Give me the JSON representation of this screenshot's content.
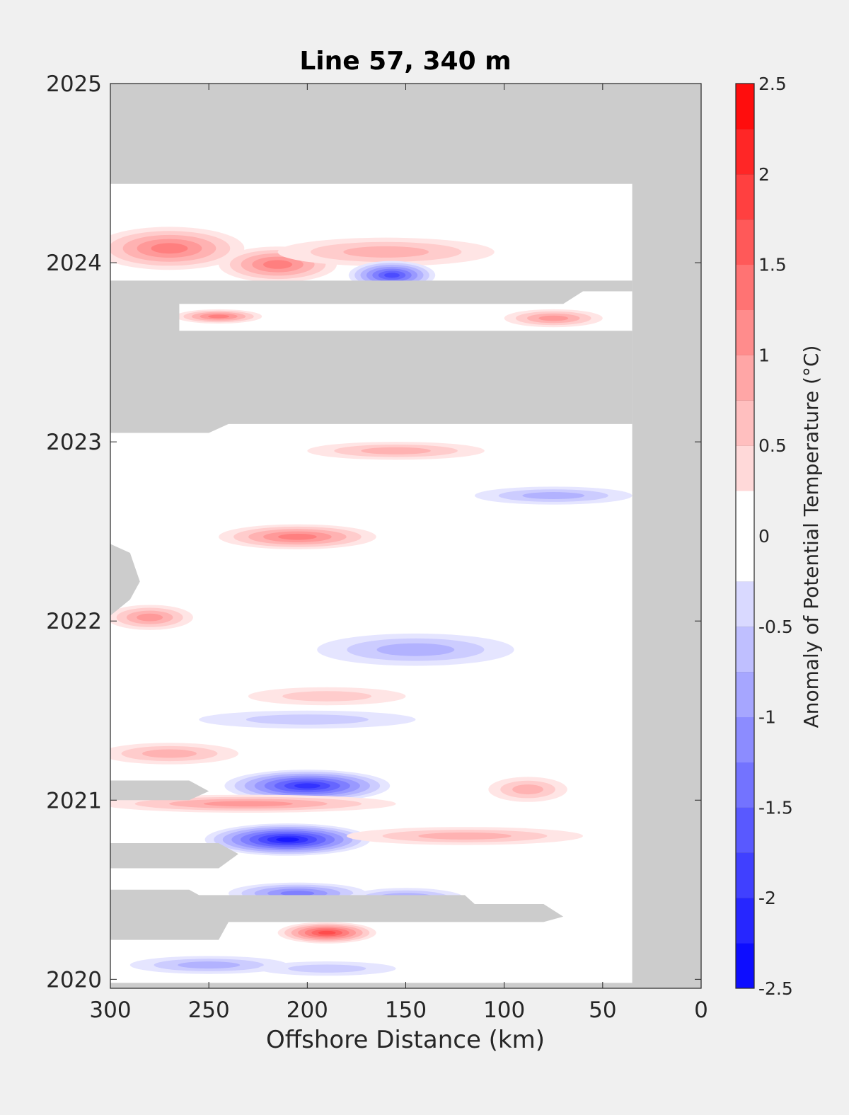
{
  "chart_data": {
    "type": "heatmap",
    "title": "Line 57, 340 m",
    "xlabel": "Offshore Distance (km)",
    "ylabel": "",
    "xlim": [
      300,
      0
    ],
    "ylim": [
      2019.95,
      2025
    ],
    "x_ticks": [
      300,
      250,
      200,
      150,
      100,
      50,
      0
    ],
    "y_ticks": [
      2020,
      2021,
      2022,
      2023,
      2024,
      2025
    ],
    "colorbar": {
      "label": "Anomaly of Potential Temperature (°C)",
      "range": [
        -2.5,
        2.5
      ],
      "step": 0.25,
      "ticks": [
        2.5,
        2,
        1.5,
        1,
        0.5,
        0,
        -0.5,
        -1,
        -1.5,
        -2,
        -2.5
      ]
    },
    "no_data_color": "#cccccc",
    "anomaly_features": [
      {
        "x": 270,
        "y": 2024.08,
        "rx": 38,
        "ry": 0.12,
        "value": 1.25
      },
      {
        "x": 215,
        "y": 2023.99,
        "rx": 30,
        "ry": 0.1,
        "value": 1.25
      },
      {
        "x": 160,
        "y": 2024.06,
        "rx": 55,
        "ry": 0.08,
        "value": 0.75
      },
      {
        "x": 157,
        "y": 2023.93,
        "rx": 22,
        "ry": 0.08,
        "value": -1.75
      },
      {
        "x": 245,
        "y": 2023.7,
        "rx": 22,
        "ry": 0.04,
        "value": 1.25
      },
      {
        "x": 75,
        "y": 2023.69,
        "rx": 25,
        "ry": 0.05,
        "value": 1.0
      },
      {
        "x": 155,
        "y": 2022.95,
        "rx": 45,
        "ry": 0.05,
        "value": 0.75
      },
      {
        "x": 205,
        "y": 2022.47,
        "rx": 40,
        "ry": 0.07,
        "value": 1.25
      },
      {
        "x": 75,
        "y": 2022.7,
        "rx": 40,
        "ry": 0.05,
        "value": -0.75
      },
      {
        "x": 280,
        "y": 2022.02,
        "rx": 22,
        "ry": 0.07,
        "value": 1.0
      },
      {
        "x": 145,
        "y": 2021.84,
        "rx": 50,
        "ry": 0.09,
        "value": -0.75
      },
      {
        "x": 200,
        "y": 2021.45,
        "rx": 55,
        "ry": 0.05,
        "value": -0.5
      },
      {
        "x": 270,
        "y": 2021.26,
        "rx": 35,
        "ry": 0.06,
        "value": 0.75
      },
      {
        "x": 190,
        "y": 2021.58,
        "rx": 40,
        "ry": 0.05,
        "value": 0.5
      },
      {
        "x": 200,
        "y": 2021.08,
        "rx": 42,
        "ry": 0.09,
        "value": -2.0
      },
      {
        "x": 210,
        "y": 2020.78,
        "rx": 42,
        "ry": 0.09,
        "value": -2.25
      },
      {
        "x": 230,
        "y": 2020.98,
        "rx": 75,
        "ry": 0.05,
        "value": 1.0
      },
      {
        "x": 120,
        "y": 2020.8,
        "rx": 60,
        "ry": 0.05,
        "value": 0.75
      },
      {
        "x": 88,
        "y": 2021.06,
        "rx": 20,
        "ry": 0.07,
        "value": 0.75
      },
      {
        "x": 205,
        "y": 2020.48,
        "rx": 35,
        "ry": 0.06,
        "value": -1.25
      },
      {
        "x": 150,
        "y": 2020.45,
        "rx": 30,
        "ry": 0.06,
        "value": -1.0
      },
      {
        "x": 190,
        "y": 2020.26,
        "rx": 25,
        "ry": 0.06,
        "value": 1.75
      },
      {
        "x": 250,
        "y": 2020.08,
        "rx": 40,
        "ry": 0.05,
        "value": -0.75
      },
      {
        "x": 190,
        "y": 2020.06,
        "rx": 35,
        "ry": 0.04,
        "value": -0.5
      }
    ]
  }
}
